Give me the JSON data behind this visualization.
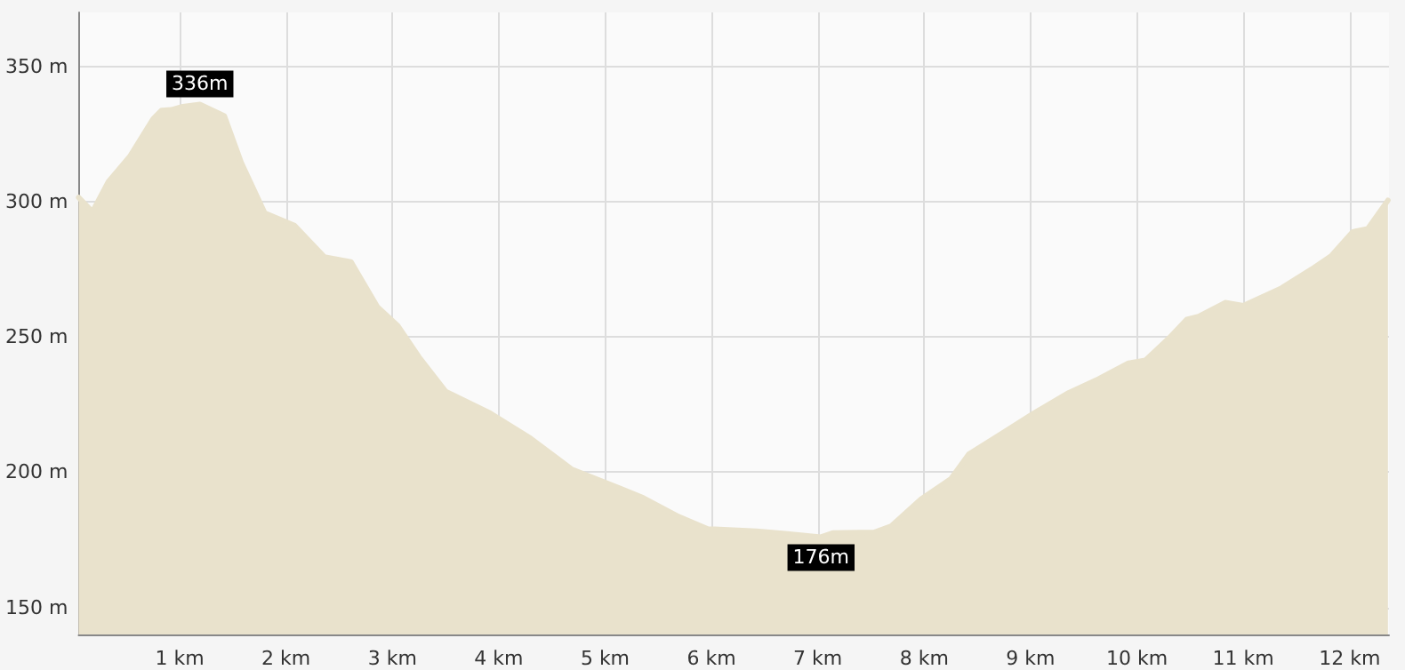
{
  "chart_data": {
    "type": "area",
    "x": [
      0.05,
      0.18,
      0.33,
      0.53,
      0.75,
      0.83,
      0.92,
      1.03,
      1.19,
      1.42,
      1.58,
      1.8,
      2.08,
      2.36,
      2.61,
      2.86,
      3.05,
      3.25,
      3.5,
      3.92,
      4.3,
      4.69,
      5.14,
      5.36,
      5.69,
      5.97,
      6.03,
      6.42,
      6.69,
      7.03,
      7.14,
      7.53,
      7.69,
      7.97,
      8.25,
      8.42,
      8.75,
      9.03,
      9.36,
      9.64,
      9.92,
      10.08,
      10.3,
      10.47,
      10.58,
      10.83,
      11.0,
      11.36,
      11.64,
      11.83,
      12.03,
      12.17,
      12.36
    ],
    "series": [
      {
        "color": "#e9e2cc",
        "values": [
          301.6,
          296.3,
          307.4,
          316.7,
          330.6,
          333.8,
          334,
          335.2,
          336,
          331.7,
          314.4,
          295.8,
          291.2,
          279.6,
          277.8,
          261.1,
          254.2,
          242.6,
          229.9,
          221.8,
          212.5,
          201,
          194,
          190.5,
          183.6,
          178.9,
          178.9,
          178.2,
          177.3,
          176,
          177.5,
          177.8,
          180.1,
          190,
          197.5,
          206.7,
          214.8,
          221.8,
          229.4,
          234.5,
          240.3,
          241.4,
          249.5,
          256.5,
          257.6,
          262.7,
          261.6,
          268.1,
          275,
          280.1,
          288.9,
          290,
          300.5
        ]
      }
    ],
    "xlim": [
      0.05,
      12.37
    ],
    "xticks": [
      {
        "value": 1,
        "label": "1 km"
      },
      {
        "value": 2,
        "label": "2 km"
      },
      {
        "value": 3,
        "label": "3 km"
      },
      {
        "value": 4,
        "label": "4 km"
      },
      {
        "value": 5,
        "label": "5 km"
      },
      {
        "value": 6,
        "label": "6 km"
      },
      {
        "value": 7,
        "label": "7 km"
      },
      {
        "value": 8,
        "label": "8 km"
      },
      {
        "value": 9,
        "label": "9 km"
      },
      {
        "value": 10,
        "label": "10 km"
      },
      {
        "value": 11,
        "label": "11 km"
      },
      {
        "value": 12,
        "label": "12 km"
      }
    ],
    "ylim": [
      140,
      370
    ],
    "yticks": [
      {
        "value": 150,
        "label": "150 m"
      },
      {
        "value": 200,
        "label": "200 m"
      },
      {
        "value": 250,
        "label": "250 m"
      },
      {
        "value": 300,
        "label": "300 m"
      },
      {
        "value": 350,
        "label": "350 m"
      }
    ],
    "annotations": [
      {
        "text": "336m",
        "x": 1.19,
        "y": 336
      },
      {
        "text": "176m",
        "x": 7.03,
        "y": 176
      }
    ],
    "grid": true
  }
}
